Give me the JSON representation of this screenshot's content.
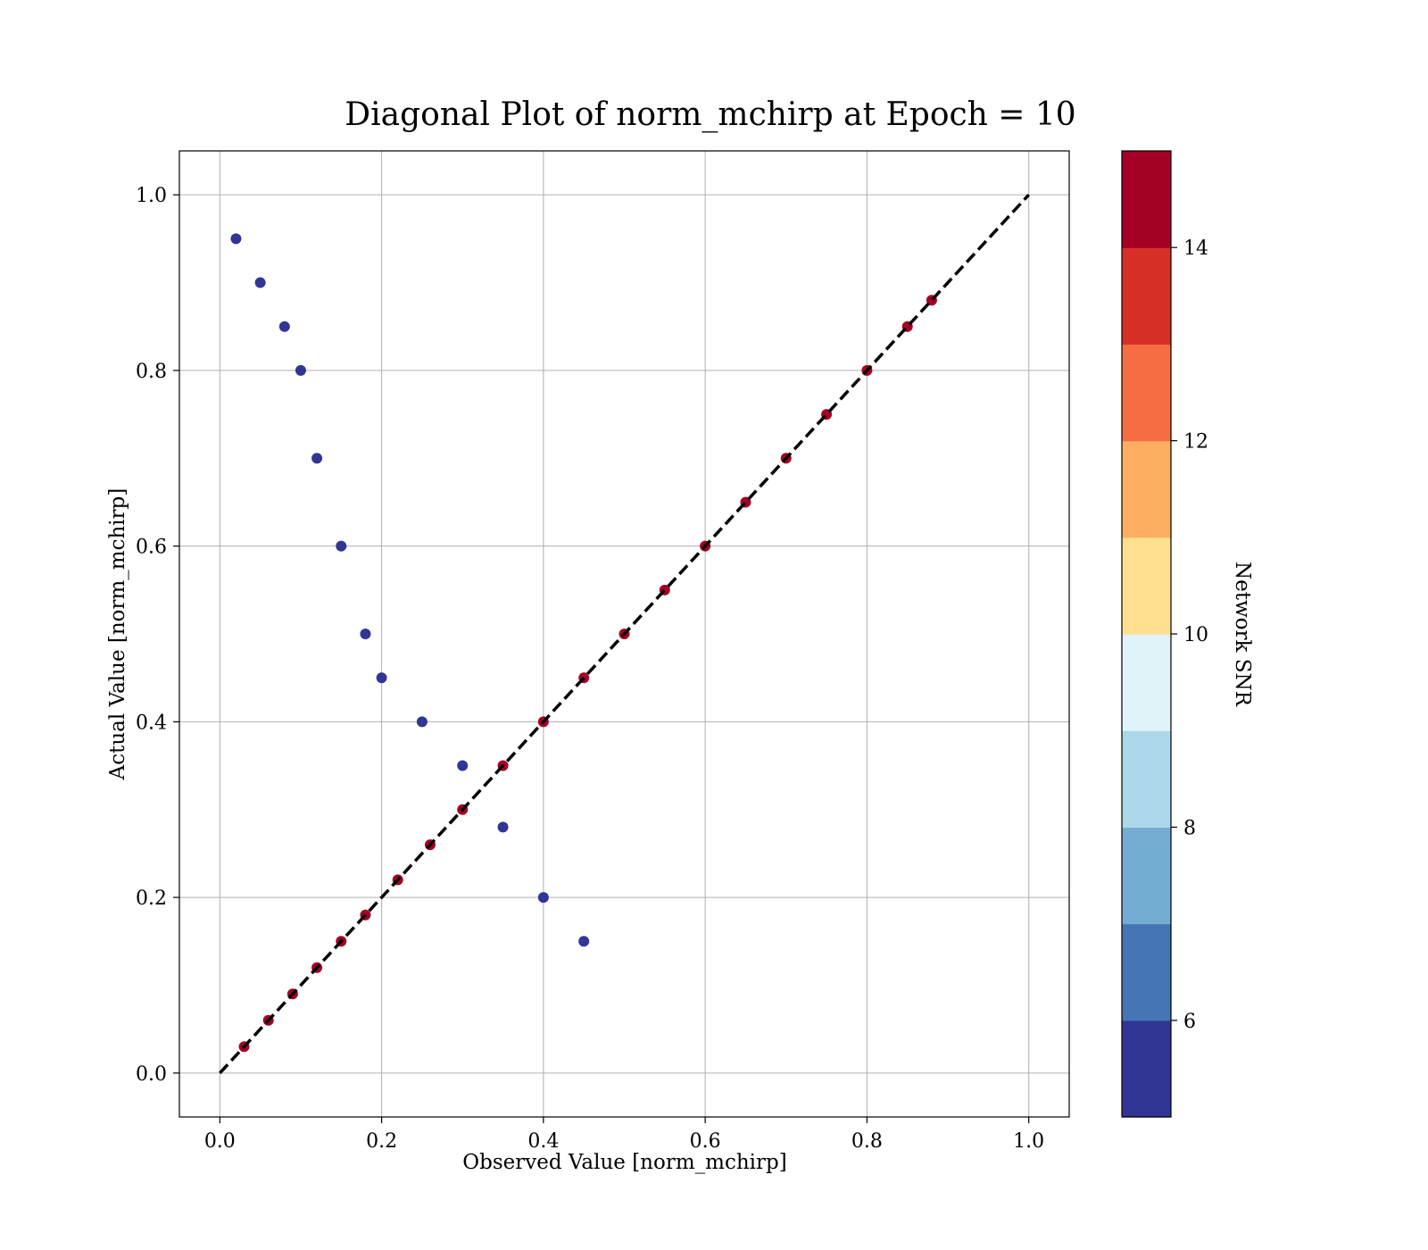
{
  "chart_data": {
    "type": "scatter",
    "title": "Diagonal Plot of norm_mchirp at Epoch = 10",
    "xlabel": "Observed Value [norm_mchirp]",
    "ylabel": "Actual Value [norm_mchirp]",
    "xlim": [
      -0.05,
      1.05
    ],
    "ylim": [
      -0.05,
      1.05
    ],
    "x_ticks": [
      "0.0",
      "0.2",
      "0.4",
      "0.6",
      "0.8",
      "1.0"
    ],
    "y_ticks": [
      "0.0",
      "0.2",
      "0.4",
      "0.6",
      "0.8",
      "1.0"
    ],
    "grid": true,
    "reference_line": {
      "style": "dashed",
      "color": "#000000",
      "x": [
        0,
        1
      ],
      "y": [
        0,
        1
      ]
    },
    "colorbar": {
      "label": "Network SNR",
      "range": [
        5,
        15
      ],
      "ticks": [
        "6",
        "8",
        "10",
        "12",
        "14"
      ],
      "colors": [
        "#313695",
        "#4575b4",
        "#74add1",
        "#abd9e9",
        "#e0f3f8",
        "#fee090",
        "#fdae61",
        "#f46d43",
        "#d73027",
        "#a50026"
      ]
    },
    "series": [
      {
        "x": [
          0.03,
          0.06,
          0.09,
          0.12,
          0.15,
          0.18,
          0.22,
          0.26,
          0.3,
          0.35,
          0.4,
          0.45,
          0.5,
          0.55,
          0.6,
          0.65,
          0.7,
          0.75,
          0.8,
          0.85,
          0.88
        ],
        "y": [
          0.03,
          0.06,
          0.09,
          0.12,
          0.15,
          0.18,
          0.22,
          0.26,
          0.3,
          0.35,
          0.4,
          0.45,
          0.5,
          0.55,
          0.6,
          0.65,
          0.7,
          0.75,
          0.8,
          0.85,
          0.88
        ],
        "snr": 15
      },
      {
        "x": [
          0.02,
          0.05,
          0.08,
          0.1,
          0.12,
          0.15,
          0.18,
          0.2,
          0.25,
          0.3,
          0.35,
          0.4,
          0.45
        ],
        "y": [
          0.95,
          0.9,
          0.85,
          0.8,
          0.7,
          0.6,
          0.5,
          0.45,
          0.4,
          0.35,
          0.28,
          0.2,
          0.15
        ],
        "snr": 5
      }
    ]
  }
}
